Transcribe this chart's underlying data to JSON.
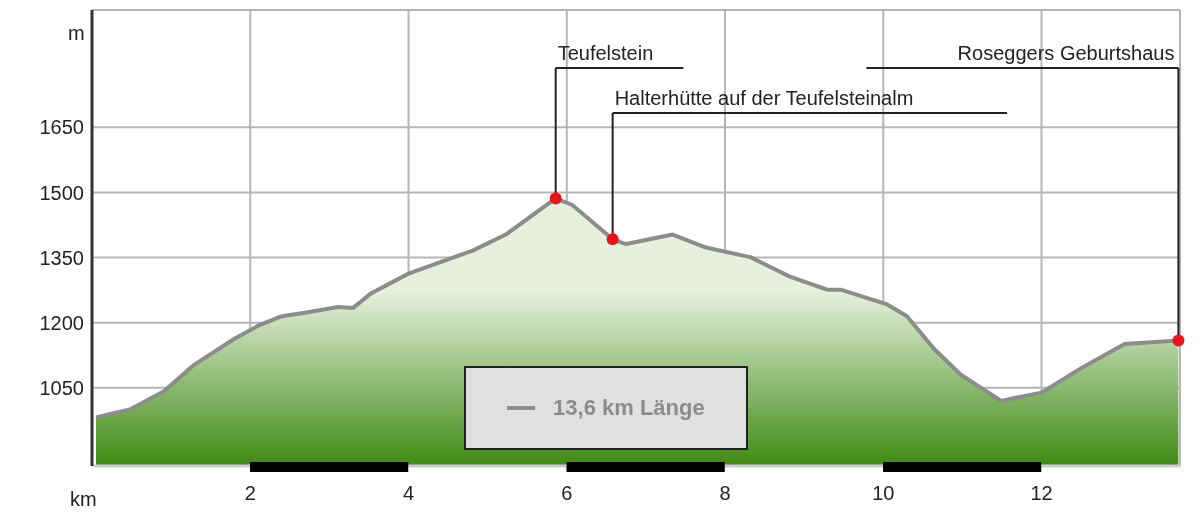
{
  "chart_data": {
    "type": "area",
    "xlabel": "km",
    "ylabel": "m",
    "xlim": [
      0,
      13.75
    ],
    "xticks": [
      2,
      4,
      6,
      8,
      10,
      12
    ],
    "ylim": [
      870,
      1920
    ],
    "yticks": [
      1050,
      1200,
      1350,
      1500,
      1650
    ],
    "x": [
      0.05,
      0.49,
      0.91,
      1.29,
      1.8,
      2.1,
      2.4,
      2.69,
      3.11,
      3.3,
      3.53,
      4.0,
      4.81,
      5.23,
      5.86,
      6.07,
      6.58,
      6.75,
      7.34,
      7.76,
      8.32,
      8.82,
      9.29,
      9.46,
      10.05,
      10.3,
      10.64,
      10.98,
      11.49,
      12.0,
      12.5,
      13.05,
      13.73
    ],
    "series": [
      {
        "name": "13,6 km Länge",
        "color": "#8c8c8c",
        "values": [
          982,
          1001,
          1042,
          1103,
          1163,
          1193,
          1215,
          1223,
          1236,
          1234,
          1268,
          1313,
          1366,
          1403,
          1486,
          1471,
          1392,
          1381,
          1403,
          1373,
          1351,
          1306,
          1276,
          1276,
          1242,
          1215,
          1140,
          1080,
          1020,
          1039,
          1095,
          1151,
          1159
        ]
      }
    ],
    "annotations": [
      {
        "text": "Teufelstein",
        "x": 5.86,
        "y": 1486
      },
      {
        "text": "Halterhütte auf der Teufelsteinalm",
        "x": 6.58,
        "y": 1392
      },
      {
        "text": "Roseggers Geburtshaus",
        "x": 13.73,
        "y": 1159
      }
    ],
    "grid": true,
    "legend": "bottom"
  }
}
